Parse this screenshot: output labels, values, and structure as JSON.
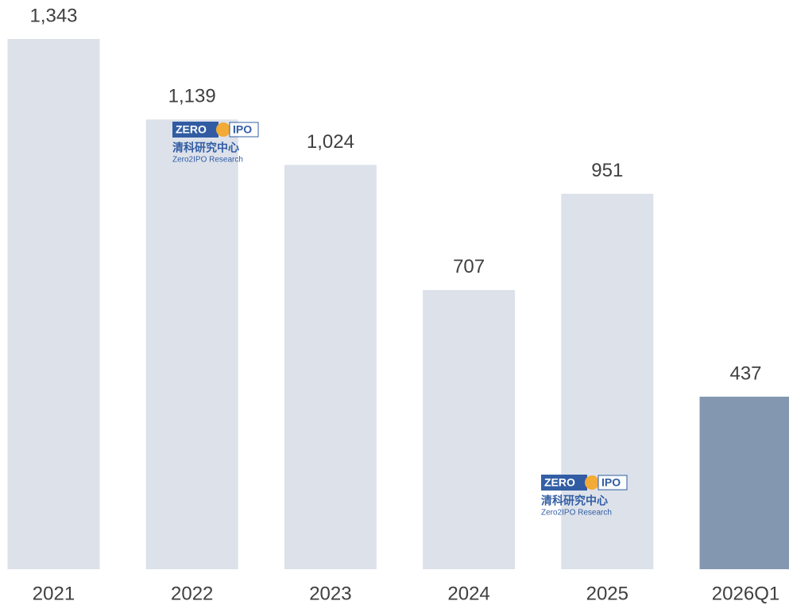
{
  "chart_data": {
    "type": "bar",
    "categories": [
      "2021",
      "2022",
      "2023",
      "2024",
      "2025",
      "2026Q1"
    ],
    "values": [
      1343,
      1139,
      1024,
      707,
      951,
      437
    ],
    "value_labels": [
      "1,343",
      "1,139",
      "1,024",
      "707",
      "951",
      "437"
    ],
    "colors": [
      "#dce1ea",
      "#dce1ea",
      "#dce1ea",
      "#dce1ea",
      "#dce1ea",
      "#8497b0"
    ],
    "watermark": {
      "logo_left": "ZERO",
      "logo_right": "IPO",
      "name": "清科研究中心",
      "name_en": "Zero2IPO Research"
    }
  }
}
